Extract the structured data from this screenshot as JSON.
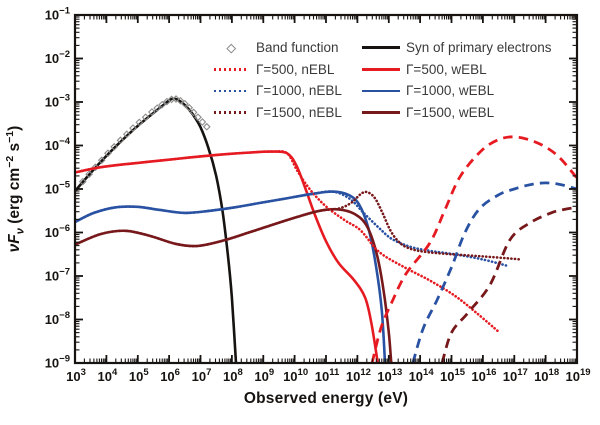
{
  "chart_data": {
    "type": "line",
    "title": "",
    "x_scale": "log",
    "y_scale": "log",
    "xlabel": "Observed energy (eV)",
    "ylabel_parts": {
      "symbol": "νF",
      "sub": "ν",
      "units_parts": [
        " (erg cm",
        "−2",
        " s",
        "−1",
        ")"
      ]
    },
    "xlim_log10": [
      3,
      19
    ],
    "ylim_log10": [
      -9,
      -1
    ],
    "x_tick_exponents": [
      3,
      4,
      5,
      6,
      7,
      8,
      9,
      10,
      11,
      12,
      13,
      14,
      15,
      16,
      17,
      18,
      19
    ],
    "y_tick_exponents": [
      -1,
      -2,
      -3,
      -4,
      -5,
      -6,
      -7,
      -8,
      -9
    ],
    "grid": false,
    "legend_position": "upper-center-inside",
    "colors": {
      "red": "#e61b22",
      "blue": "#2a52a3",
      "dark_red": "#77181b",
      "black": "#161310",
      "axis": "#171310",
      "marker_gray": "#8c8c8c"
    },
    "series": [
      {
        "key": "syn_primary_electrons",
        "label": "Syn of primary electrons",
        "color_key": "black",
        "style": "solid",
        "points_log10": [
          [
            3.0,
            -5.05
          ],
          [
            3.5,
            -4.63
          ],
          [
            4.0,
            -4.24
          ],
          [
            4.5,
            -3.88
          ],
          [
            5.0,
            -3.55
          ],
          [
            5.45,
            -3.28
          ],
          [
            5.8,
            -3.08
          ],
          [
            6.05,
            -2.94
          ],
          [
            6.25,
            -2.94
          ],
          [
            6.5,
            -3.07
          ],
          [
            6.75,
            -3.28
          ],
          [
            7.0,
            -3.58
          ],
          [
            7.25,
            -4.05
          ],
          [
            7.5,
            -4.7
          ],
          [
            7.7,
            -5.5
          ],
          [
            7.87,
            -6.5
          ],
          [
            8.0,
            -7.5
          ],
          [
            8.13,
            -9.0
          ]
        ]
      },
      {
        "key": "band_function",
        "label": "Band function",
        "color_key": "marker_gray",
        "style": "markers",
        "points_log10": [
          [
            3.25,
            -4.83
          ],
          [
            3.45,
            -4.66
          ],
          [
            3.65,
            -4.5
          ],
          [
            3.85,
            -4.34
          ],
          [
            4.05,
            -4.18
          ],
          [
            4.25,
            -4.03
          ],
          [
            4.45,
            -3.88
          ],
          [
            4.65,
            -3.74
          ],
          [
            4.85,
            -3.6
          ],
          [
            5.05,
            -3.47
          ],
          [
            5.25,
            -3.35
          ],
          [
            5.45,
            -3.23
          ],
          [
            5.62,
            -3.14
          ],
          [
            5.78,
            -3.06
          ],
          [
            5.93,
            -2.99
          ],
          [
            6.08,
            -2.94
          ],
          [
            6.22,
            -2.93
          ],
          [
            6.36,
            -2.97
          ],
          [
            6.5,
            -3.04
          ],
          [
            6.64,
            -3.13
          ],
          [
            6.78,
            -3.24
          ],
          [
            6.92,
            -3.35
          ],
          [
            7.06,
            -3.46
          ],
          [
            7.2,
            -3.57
          ]
        ]
      },
      {
        "key": "g500_wEBL",
        "label": "Γ=500, wEBL",
        "color_key": "red",
        "style": "solid",
        "points_log10": [
          [
            3.0,
            -4.62
          ],
          [
            3.8,
            -4.5
          ],
          [
            4.6,
            -4.43
          ],
          [
            5.4,
            -4.37
          ],
          [
            6.2,
            -4.31
          ],
          [
            7.0,
            -4.25
          ],
          [
            7.8,
            -4.2
          ],
          [
            8.6,
            -4.16
          ],
          [
            9.3,
            -4.14
          ],
          [
            9.76,
            -4.18
          ],
          [
            10.05,
            -4.45
          ],
          [
            10.35,
            -5.0
          ],
          [
            10.65,
            -5.6
          ],
          [
            11.0,
            -6.2
          ],
          [
            11.4,
            -6.7
          ],
          [
            11.9,
            -7.1
          ],
          [
            12.25,
            -7.5
          ],
          [
            12.45,
            -8.1
          ],
          [
            12.65,
            -9.0
          ]
        ]
      },
      {
        "key": "g1000_wEBL",
        "label": "Γ=1000, wEBL",
        "color_key": "blue",
        "style": "solid",
        "points_log10": [
          [
            3.0,
            -5.76
          ],
          [
            3.6,
            -5.55
          ],
          [
            4.3,
            -5.42
          ],
          [
            5.0,
            -5.41
          ],
          [
            5.7,
            -5.48
          ],
          [
            6.5,
            -5.55
          ],
          [
            7.3,
            -5.5
          ],
          [
            8.1,
            -5.42
          ],
          [
            8.9,
            -5.32
          ],
          [
            9.7,
            -5.22
          ],
          [
            10.5,
            -5.12
          ],
          [
            11.2,
            -5.06
          ],
          [
            11.7,
            -5.13
          ],
          [
            12.05,
            -5.35
          ],
          [
            12.35,
            -5.9
          ],
          [
            12.6,
            -6.8
          ],
          [
            12.78,
            -7.8
          ],
          [
            12.88,
            -9.0
          ]
        ]
      },
      {
        "key": "g1500_wEBL",
        "label": "Γ=1500, wEBL",
        "color_key": "dark_red",
        "style": "solid",
        "points_log10": [
          [
            3.0,
            -6.28
          ],
          [
            3.8,
            -6.04
          ],
          [
            4.6,
            -5.96
          ],
          [
            5.4,
            -6.08
          ],
          [
            6.2,
            -6.26
          ],
          [
            6.9,
            -6.31
          ],
          [
            7.7,
            -6.19
          ],
          [
            8.5,
            -6.01
          ],
          [
            9.3,
            -5.82
          ],
          [
            10.1,
            -5.64
          ],
          [
            10.8,
            -5.5
          ],
          [
            11.4,
            -5.47
          ],
          [
            11.9,
            -5.57
          ],
          [
            12.3,
            -5.85
          ],
          [
            12.62,
            -6.5
          ],
          [
            12.85,
            -7.4
          ],
          [
            13.0,
            -8.3
          ],
          [
            13.08,
            -9.0
          ]
        ]
      },
      {
        "key": "g500_nEBL",
        "label": "Γ=500, nEBL",
        "color_key": "red",
        "style": "dotted",
        "points_log10": [
          [
            3.0,
            -4.62
          ],
          [
            3.8,
            -4.5
          ],
          [
            4.6,
            -4.43
          ],
          [
            5.4,
            -4.37
          ],
          [
            6.2,
            -4.31
          ],
          [
            7.0,
            -4.25
          ],
          [
            7.8,
            -4.2
          ],
          [
            8.6,
            -4.16
          ],
          [
            9.3,
            -4.14
          ],
          [
            9.76,
            -4.18
          ],
          [
            10.1,
            -4.6
          ],
          [
            10.5,
            -5.02
          ],
          [
            11.0,
            -5.4
          ],
          [
            11.6,
            -5.72
          ],
          [
            12.1,
            -5.95
          ],
          [
            12.7,
            -6.45
          ],
          [
            13.5,
            -6.8
          ],
          [
            14.3,
            -7.1
          ],
          [
            15.1,
            -7.45
          ],
          [
            15.8,
            -7.85
          ],
          [
            16.5,
            -8.28
          ]
        ]
      },
      {
        "key": "g1000_nEBL",
        "label": "Γ=1000, nEBL",
        "color_key": "blue",
        "style": "dotted",
        "points_log10": [
          [
            3.0,
            -5.76
          ],
          [
            3.6,
            -5.55
          ],
          [
            4.3,
            -5.42
          ],
          [
            5.0,
            -5.41
          ],
          [
            5.7,
            -5.48
          ],
          [
            6.5,
            -5.55
          ],
          [
            7.3,
            -5.5
          ],
          [
            8.1,
            -5.42
          ],
          [
            8.9,
            -5.32
          ],
          [
            9.7,
            -5.22
          ],
          [
            10.5,
            -5.12
          ],
          [
            11.2,
            -5.06
          ],
          [
            11.75,
            -5.22
          ],
          [
            12.2,
            -5.55
          ],
          [
            12.7,
            -5.9
          ],
          [
            13.1,
            -6.15
          ],
          [
            13.7,
            -6.33
          ],
          [
            14.3,
            -6.42
          ],
          [
            15.1,
            -6.5
          ],
          [
            16.0,
            -6.62
          ],
          [
            16.8,
            -6.77
          ]
        ]
      },
      {
        "key": "g1500_nEBL",
        "label": "Γ=1500, nEBL",
        "color_key": "dark_red",
        "style": "dotted",
        "points_log10": [
          [
            3.0,
            -6.28
          ],
          [
            3.8,
            -6.04
          ],
          [
            4.6,
            -5.96
          ],
          [
            5.4,
            -6.08
          ],
          [
            6.2,
            -6.26
          ],
          [
            6.9,
            -6.31
          ],
          [
            7.7,
            -6.19
          ],
          [
            8.5,
            -6.01
          ],
          [
            9.3,
            -5.82
          ],
          [
            10.1,
            -5.64
          ],
          [
            10.8,
            -5.5
          ],
          [
            11.4,
            -5.45
          ],
          [
            11.8,
            -5.32
          ],
          [
            12.1,
            -5.12
          ],
          [
            12.3,
            -5.07
          ],
          [
            12.55,
            -5.2
          ],
          [
            12.8,
            -5.55
          ],
          [
            13.05,
            -5.95
          ],
          [
            13.3,
            -6.2
          ],
          [
            13.6,
            -6.35
          ],
          [
            14.1,
            -6.44
          ],
          [
            15.0,
            -6.5
          ],
          [
            16.0,
            -6.55
          ],
          [
            16.9,
            -6.6
          ],
          [
            17.2,
            -6.62
          ]
        ]
      },
      {
        "key": "g500_wEBL_cascade_dashed",
        "label": null,
        "color_key": "red",
        "style": "dashed",
        "points_log10": [
          [
            12.47,
            -9.0
          ],
          [
            12.75,
            -8.2
          ],
          [
            13.1,
            -7.6
          ],
          [
            13.55,
            -6.95
          ],
          [
            14.31,
            -6.24
          ],
          [
            14.79,
            -5.48
          ],
          [
            15.27,
            -4.72
          ],
          [
            15.91,
            -4.15
          ],
          [
            16.45,
            -3.88
          ],
          [
            17.0,
            -3.8
          ],
          [
            17.6,
            -3.9
          ],
          [
            18.1,
            -4.08
          ],
          [
            18.5,
            -4.32
          ],
          [
            19.0,
            -4.75
          ]
        ]
      },
      {
        "key": "g1000_wEBL_cascade_dashed",
        "label": null,
        "color_key": "blue",
        "style": "dashed",
        "points_log10": [
          [
            13.77,
            -9.0
          ],
          [
            14.1,
            -8.2
          ],
          [
            14.54,
            -7.55
          ],
          [
            15.0,
            -6.8
          ],
          [
            15.43,
            -6.0
          ],
          [
            15.91,
            -5.44
          ],
          [
            16.54,
            -5.12
          ],
          [
            17.0,
            -5.0
          ],
          [
            17.5,
            -4.9
          ],
          [
            18.0,
            -4.86
          ],
          [
            18.5,
            -4.9
          ],
          [
            19.0,
            -5.0
          ]
        ]
      },
      {
        "key": "g1500_wEBL_cascade_dashed",
        "label": null,
        "color_key": "dark_red",
        "style": "dashed",
        "points_log10": [
          [
            14.7,
            -9.0
          ],
          [
            15.0,
            -8.3
          ],
          [
            15.52,
            -7.85
          ],
          [
            16.23,
            -7.2
          ],
          [
            16.86,
            -6.17
          ],
          [
            17.5,
            -5.78
          ],
          [
            18.17,
            -5.55
          ],
          [
            18.6,
            -5.47
          ],
          [
            19.0,
            -5.42
          ]
        ]
      }
    ],
    "legend": {
      "columns": [
        [
          "band_function",
          "g500_nEBL",
          "g1000_nEBL",
          "g1500_nEBL"
        ],
        [
          "syn_primary_electrons",
          "g500_wEBL",
          "g1000_wEBL",
          "g1500_wEBL"
        ]
      ]
    }
  }
}
